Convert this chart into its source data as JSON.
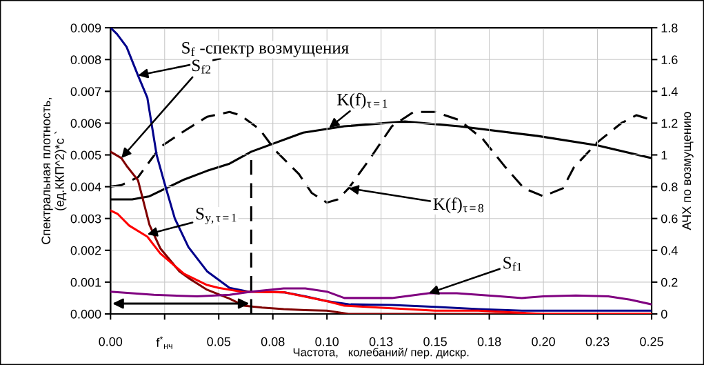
{
  "chart_data": {
    "type": "line",
    "xlabel": "Частота,   колебаний/ пер. дискр.",
    "ylabel": "Спектральная плотность,\n(ед.ККП^2)*с `",
    "y2label": "АЧХ по возмущению",
    "xlim": [
      0,
      0.25
    ],
    "xticks": [
      {
        "value": 0,
        "label": "0.00"
      },
      {
        "value": 0.025,
        "label": "f$^{*}$$_{нч}$"
      },
      {
        "value": 0.05,
        "label": "0.05"
      },
      {
        "value": 0.075,
        "label": "0.08"
      },
      {
        "value": 0.1,
        "label": "0.10"
      },
      {
        "value": 0.125,
        "label": "0.13"
      },
      {
        "value": 0.15,
        "label": "0.15"
      },
      {
        "value": 0.175,
        "label": "0.18"
      },
      {
        "value": 0.2,
        "label": "0.20"
      },
      {
        "value": 0.225,
        "label": "0.23"
      },
      {
        "value": 0.25,
        "label": "0.25"
      }
    ],
    "ylim": [
      0,
      0.009
    ],
    "yticks": [
      {
        "value": 0,
        "label": "0.000"
      },
      0.001,
      0.002,
      0.003,
      0.004,
      0.005,
      0.006,
      0.007,
      0.008,
      0.009
    ],
    "y2lim": [
      0,
      1.8
    ],
    "y2ticks": [
      0,
      0.2,
      0.4,
      0.6,
      0.8,
      1,
      1.2,
      1.4,
      1.6,
      1.8
    ],
    "grid": true,
    "series": [
      {
        "color": "#00008b",
        "x": [
          0,
          0.003,
          0.0074,
          0.0127,
          0.017,
          0.0213,
          0.025,
          0.0297,
          0.036,
          0.0446,
          0.055,
          0.0637,
          0.07,
          0.08,
          0.09,
          0.1,
          0.11,
          0.13,
          0.15,
          0.17,
          0.19,
          0.2,
          0.22,
          0.235,
          0.25
        ],
        "values": [
          0.009,
          0.0088,
          0.0084,
          0.0075,
          0.0068,
          0.005,
          0.0041,
          0.003,
          0.0021,
          0.00134,
          0.00082,
          0.0007,
          0.0007,
          0.00068,
          0.00055,
          0.0004,
          0.0003,
          0.00028,
          0.00022,
          0.00015,
          0.0001,
          0.0001,
          0.0001,
          0.0001,
          0.0001
        ]
      },
      {
        "color": "#800000",
        "x": [
          0,
          0.005,
          0.0074,
          0.0127,
          0.018,
          0.023,
          0.0318,
          0.036,
          0.0446,
          0.055,
          0.0615,
          0.07,
          0.08,
          0.09,
          0.1,
          0.11,
          0.25
        ],
        "values": [
          0.0051,
          0.0049,
          0.00466,
          0.0042,
          0.0028,
          0.00206,
          0.00134,
          0.00113,
          0.00076,
          0.00048,
          0.00026,
          0.0002,
          0.00015,
          0.00012,
          0.0001,
          0,
          0
        ]
      },
      {
        "color": "#ff0000",
        "x": [
          0,
          0.0032,
          0.0086,
          0.017,
          0.023,
          0.034,
          0.0446,
          0.05,
          0.0605,
          0.08,
          0.1,
          0.108,
          0.15,
          0.17,
          0.2,
          0.25
        ],
        "values": [
          0.00325,
          0.00315,
          0.00278,
          0.00243,
          0.0019,
          0.00126,
          0.00091,
          0.00082,
          0.0007,
          0.00068,
          0.0004,
          0.00026,
          0.0001,
          0.0001,
          0,
          0
        ]
      },
      {
        "color": "#800080",
        "x": [
          0,
          0.02,
          0.04,
          0.055,
          0.065,
          0.08,
          0.09,
          0.1,
          0.108,
          0.13,
          0.147,
          0.16,
          0.18,
          0.19,
          0.2,
          0.215,
          0.23,
          0.24,
          0.25
        ],
        "values": [
          0.0007,
          0.0006,
          0.00055,
          0.0006,
          0.0007,
          0.0008,
          0.0008,
          0.0007,
          0.0005,
          0.0005,
          0.00065,
          0.00065,
          0.00055,
          0.0005,
          0.00055,
          0.00058,
          0.00055,
          0.00045,
          0.0003
        ]
      },
      {
        "color": "#000000",
        "axis": "y2",
        "x": [
          0,
          0.01,
          0.018,
          0.034,
          0.0446,
          0.055,
          0.065,
          0.089,
          0.108,
          0.136,
          0.161,
          0.197,
          0.225,
          0.25
        ],
        "values": [
          0.72,
          0.72,
          0.74,
          0.845,
          0.9,
          0.945,
          1.02,
          1.14,
          1.18,
          1.21,
          1.18,
          1.12,
          1.06,
          0.98
        ]
      },
      {
        "color": "#000000",
        "axis": "y2",
        "line_style": "dashed",
        "x": [
          0,
          0.005,
          0.0127,
          0.023,
          0.034,
          0.0446,
          0.055,
          0.06,
          0.069,
          0.076,
          0.087,
          0.093,
          0.1,
          0.105,
          0.11,
          0.119,
          0.13,
          0.14,
          0.15,
          0.161,
          0.172,
          0.182,
          0.191,
          0.2,
          0.209,
          0.214,
          0.225,
          0.236,
          0.243,
          0.25
        ],
        "values": [
          0.8,
          0.81,
          0.86,
          1.05,
          1.15,
          1.24,
          1.27,
          1.25,
          1.16,
          1.03,
          0.88,
          0.76,
          0.7,
          0.72,
          0.79,
          0.96,
          1.18,
          1.27,
          1.27,
          1.22,
          1.1,
          0.93,
          0.79,
          0.74,
          0.79,
          0.92,
          1.08,
          1.2,
          1.25,
          1.22
        ]
      },
      {
        "color": "#000000",
        "line_style": "dashed",
        "x": [
          0.065,
          0.065
        ],
        "values": [
          0,
          0.0051
        ]
      }
    ],
    "annotations": [
      {
        "text": "S$_{f}$ -спектр возмущения",
        "x": 0.0127,
        "y": 0.0075
      },
      {
        "text": "S$_{f2}$",
        "x": 0.005,
        "y": 0.0049
      },
      {
        "text": "K(f)$_{τ=1}$",
        "x": 0.101,
        "y": 0.00585
      },
      {
        "text": "K(f)$_{τ=8}$",
        "x": 0.11,
        "y": 0.00395
      },
      {
        "text": "S$_{y,τ=1}$",
        "x": 0.017,
        "y": 0.0025
      },
      {
        "text": "S$_{f1}$",
        "x": 0.147,
        "y": 0.00065
      }
    ]
  }
}
